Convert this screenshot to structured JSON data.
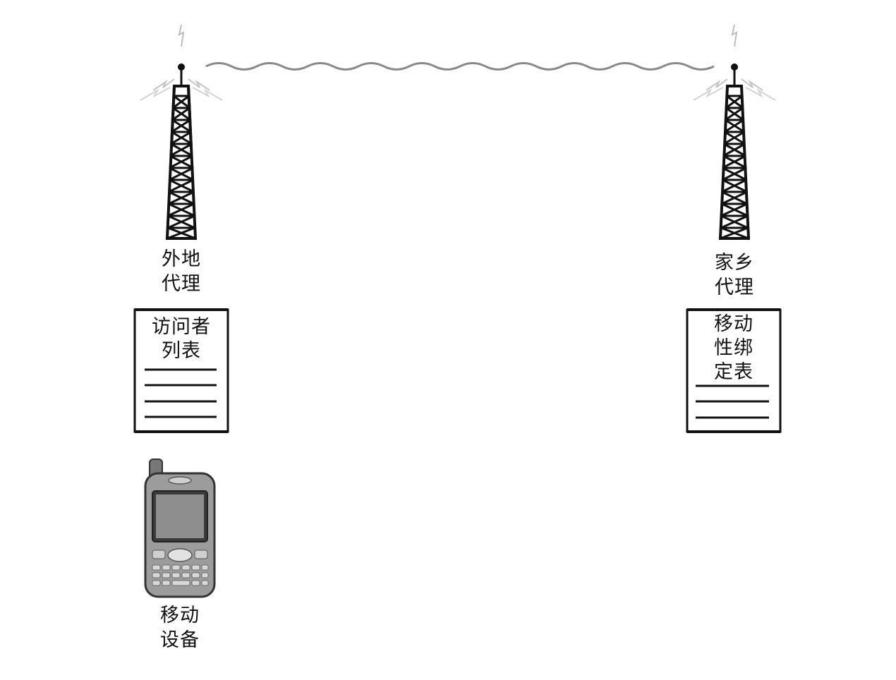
{
  "foreign_agent": {
    "label_line1": "外地",
    "label_line2": "代理",
    "table_line1": "访问者",
    "table_line2": "列表"
  },
  "home_agent": {
    "label_line1": "家乡",
    "label_line2": "代理",
    "table_line1": "移动",
    "table_line2": "性绑",
    "table_line3": "定表"
  },
  "mobile_device": {
    "label_line1": "移动",
    "label_line2": "设备"
  }
}
